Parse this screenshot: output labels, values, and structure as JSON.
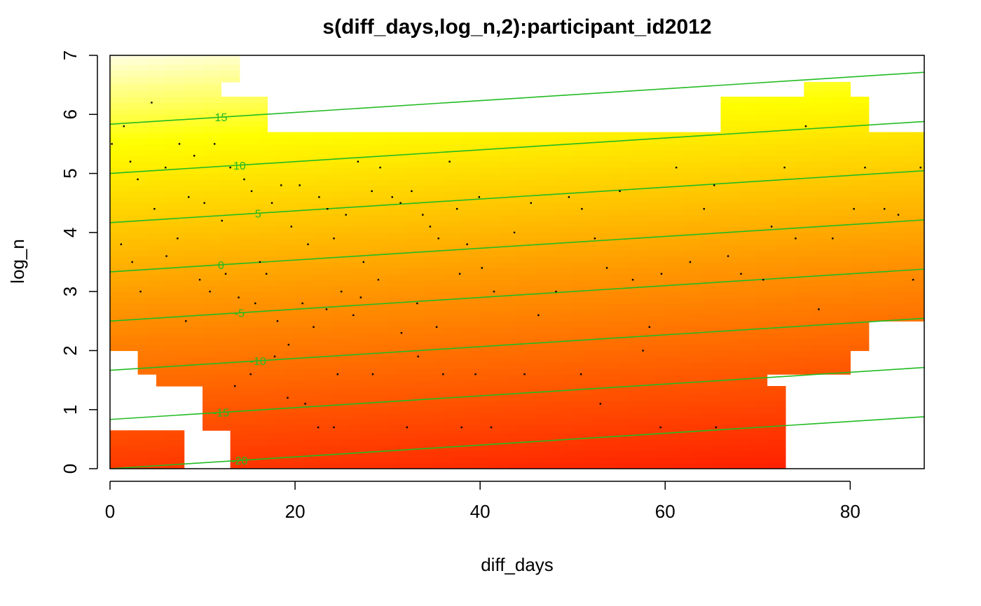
{
  "chart_data": {
    "type": "heatmap",
    "title": "s(diff_days,log_n,2):participant_id2012",
    "xlabel": "diff_days",
    "ylabel": "log_n",
    "xlim": [
      0,
      88
    ],
    "ylim": [
      0,
      7
    ],
    "x_ticks": [
      0,
      20,
      40,
      60,
      80
    ],
    "y_ticks": [
      0,
      1,
      2,
      3,
      4,
      5,
      6,
      7
    ],
    "x_tick_labels": [
      "0",
      "20",
      "40",
      "60",
      "80"
    ],
    "y_tick_labels": [
      "0",
      "1",
      "2",
      "3",
      "4",
      "5",
      "6",
      "7"
    ],
    "grid": false,
    "color_scale": {
      "low": "#ff0000",
      "mid": "#ff9900",
      "high": "#ffff00",
      "highest": "#ffffe0"
    },
    "contour_color": "#22bb22",
    "contours": [
      {
        "level": 15,
        "label": "15"
      },
      {
        "level": 10,
        "label": "10"
      },
      {
        "level": 5,
        "label": "5"
      },
      {
        "level": 0,
        "label": "0"
      },
      {
        "level": -5,
        "label": "-5"
      },
      {
        "level": -10,
        "label": "-10"
      },
      {
        "level": -15,
        "label": "-15"
      },
      {
        "level": -20,
        "label": "-20"
      }
    ],
    "surface": {
      "intercept": 4.0,
      "slope_log_n": 6.0,
      "slope_diff_days": -0.06
    },
    "region_rows": [
      {
        "y0": 0.0,
        "y1": 0.65,
        "x0": 0,
        "x1": 8
      },
      {
        "y0": 0.0,
        "y1": 0.65,
        "x0": 13,
        "x1": 73
      },
      {
        "y0": 0.65,
        "y1": 1.4,
        "x0": 10,
        "x1": 73
      },
      {
        "y0": 1.4,
        "y1": 1.6,
        "x0": 5,
        "x1": 71
      },
      {
        "y0": 1.6,
        "y1": 2.0,
        "x0": 3,
        "x1": 80
      },
      {
        "y0": 2.0,
        "y1": 2.5,
        "x0": 0,
        "x1": 82
      },
      {
        "y0": 2.5,
        "y1": 5.7,
        "x0": 0,
        "x1": 88
      },
      {
        "y0": 5.7,
        "y1": 6.3,
        "x0": 0,
        "x1": 17
      },
      {
        "y0": 5.7,
        "y1": 6.3,
        "x0": 66,
        "x1": 82
      },
      {
        "y0": 6.3,
        "y1": 6.55,
        "x0": 0,
        "x1": 12
      },
      {
        "y0": 6.3,
        "y1": 6.55,
        "x0": 75,
        "x1": 80
      },
      {
        "y0": 6.55,
        "y1": 7.1,
        "x0": 0,
        "x1": 14
      }
    ],
    "points": [
      [
        0.2,
        5.5
      ],
      [
        1.5,
        5.8
      ],
      [
        2.2,
        5.2
      ],
      [
        3.0,
        4.9
      ],
      [
        4.5,
        6.2
      ],
      [
        5.2,
        7.1
      ],
      [
        6.0,
        5.1
      ],
      [
        7.5,
        5.5
      ],
      [
        8.5,
        4.6
      ],
      [
        9.1,
        5.3
      ],
      [
        10.2,
        4.5
      ],
      [
        11.3,
        5.5
      ],
      [
        12.1,
        4.2
      ],
      [
        13.0,
        5.1
      ],
      [
        14.5,
        4.9
      ],
      [
        15.3,
        4.7
      ],
      [
        16.2,
        3.5
      ],
      [
        17.5,
        4.5
      ],
      [
        18.5,
        4.8
      ],
      [
        19.6,
        4.1
      ],
      [
        20.5,
        4.8
      ],
      [
        21.4,
        3.8
      ],
      [
        22.6,
        4.6
      ],
      [
        23.5,
        4.4
      ],
      [
        24.2,
        3.9
      ],
      [
        25.5,
        4.3
      ],
      [
        26.8,
        5.2
      ],
      [
        27.4,
        3.5
      ],
      [
        28.3,
        4.7
      ],
      [
        29.2,
        5.1
      ],
      [
        30.5,
        4.6
      ],
      [
        31.4,
        4.5
      ],
      [
        32.6,
        4.7
      ],
      [
        33.8,
        4.3
      ],
      [
        34.6,
        4.1
      ],
      [
        35.5,
        3.9
      ],
      [
        36.7,
        5.2
      ],
      [
        37.5,
        4.4
      ],
      [
        38.6,
        3.8
      ],
      [
        39.9,
        4.6
      ],
      [
        1.2,
        3.8
      ],
      [
        2.4,
        3.5
      ],
      [
        3.3,
        3.0
      ],
      [
        4.8,
        4.4
      ],
      [
        6.1,
        3.6
      ],
      [
        7.3,
        3.9
      ],
      [
        8.2,
        2.5
      ],
      [
        9.7,
        3.2
      ],
      [
        10.8,
        3.0
      ],
      [
        12.5,
        3.3
      ],
      [
        13.9,
        2.9
      ],
      [
        15.7,
        2.8
      ],
      [
        16.9,
        3.3
      ],
      [
        18.1,
        2.5
      ],
      [
        19.3,
        2.1
      ],
      [
        20.8,
        2.8
      ],
      [
        22.0,
        2.4
      ],
      [
        23.4,
        2.7
      ],
      [
        25.0,
        3.0
      ],
      [
        26.3,
        2.6
      ],
      [
        27.1,
        2.9
      ],
      [
        29.0,
        3.2
      ],
      [
        31.5,
        2.3
      ],
      [
        33.2,
        2.8
      ],
      [
        35.3,
        2.4
      ],
      [
        37.8,
        3.3
      ],
      [
        40.2,
        3.4
      ],
      [
        41.5,
        3.0
      ],
      [
        43.7,
        4.0
      ],
      [
        45.5,
        4.5
      ],
      [
        46.3,
        2.6
      ],
      [
        48.2,
        3.0
      ],
      [
        49.6,
        4.6
      ],
      [
        51.0,
        4.4
      ],
      [
        52.4,
        3.9
      ],
      [
        53.7,
        3.4
      ],
      [
        55.1,
        4.7
      ],
      [
        56.5,
        3.2
      ],
      [
        58.3,
        2.4
      ],
      [
        59.6,
        3.3
      ],
      [
        61.2,
        5.1
      ],
      [
        62.7,
        3.5
      ],
      [
        64.2,
        4.4
      ],
      [
        65.3,
        4.8
      ],
      [
        66.8,
        3.6
      ],
      [
        68.2,
        3.3
      ],
      [
        70.6,
        3.2
      ],
      [
        71.5,
        4.1
      ],
      [
        72.9,
        5.1
      ],
      [
        74.1,
        3.9
      ],
      [
        75.2,
        5.8
      ],
      [
        76.6,
        2.7
      ],
      [
        78.1,
        3.9
      ],
      [
        80.4,
        4.4
      ],
      [
        81.6,
        5.1
      ],
      [
        83.7,
        4.4
      ],
      [
        85.2,
        4.3
      ],
      [
        86.8,
        3.2
      ],
      [
        87.6,
        5.1
      ],
      [
        24.6,
        1.6
      ],
      [
        28.4,
        1.6
      ],
      [
        33.3,
        1.9
      ],
      [
        36.0,
        1.6
      ],
      [
        39.5,
        1.6
      ],
      [
        44.8,
        1.6
      ],
      [
        50.9,
        1.6
      ],
      [
        53.0,
        1.1
      ],
      [
        57.6,
        2.0
      ],
      [
        21.1,
        1.1
      ],
      [
        22.5,
        0.7
      ],
      [
        24.2,
        0.7
      ],
      [
        32.1,
        0.7
      ],
      [
        38.0,
        0.7
      ],
      [
        41.2,
        0.7
      ],
      [
        59.5,
        0.7
      ],
      [
        65.5,
        0.7
      ],
      [
        13.5,
        1.4
      ],
      [
        15.2,
        1.6
      ],
      [
        17.8,
        1.9
      ],
      [
        19.2,
        1.2
      ]
    ]
  }
}
